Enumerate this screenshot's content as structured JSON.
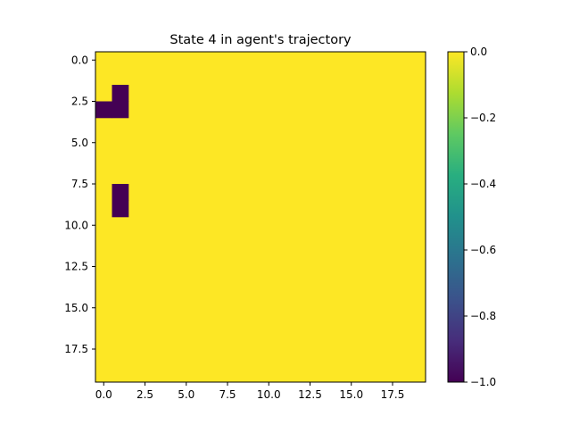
{
  "chart_data": {
    "type": "heatmap",
    "title": "State 4 in agent's trajectory",
    "xlabel": "",
    "ylabel": "",
    "grid": false,
    "shape": [
      20,
      20
    ],
    "xlim": [
      -0.5,
      19.5
    ],
    "ylim": [
      19.5,
      -0.5
    ],
    "x_ticks": [
      0,
      2.5,
      5,
      7.5,
      10,
      12.5,
      15,
      17.5
    ],
    "x_tick_labels": [
      "0.0",
      "2.5",
      "5.0",
      "7.5",
      "10.0",
      "12.5",
      "15.0",
      "17.5"
    ],
    "y_ticks": [
      0,
      2.5,
      5,
      7.5,
      10,
      12.5,
      15,
      17.5
    ],
    "y_tick_labels": [
      "0.0",
      "2.5",
      "5.0",
      "7.5",
      "10.0",
      "12.5",
      "15.0",
      "17.5"
    ],
    "default_value": 0,
    "cells": [
      {
        "row": 2,
        "col": 1,
        "value": -1
      },
      {
        "row": 3,
        "col": 0,
        "value": -1
      },
      {
        "row": 3,
        "col": 1,
        "value": -1
      },
      {
        "row": 8,
        "col": 1,
        "value": -1
      },
      {
        "row": 9,
        "col": 1,
        "value": -1
      }
    ],
    "colorbar": {
      "colormap": "viridis",
      "range": [
        -1.0,
        0.0
      ],
      "ticks": [
        0.0,
        -0.2,
        -0.4,
        -0.6,
        -0.8,
        -1.0
      ],
      "tick_labels": [
        "0.0",
        "−0.2",
        "−0.4",
        "−0.6",
        "−0.8",
        "−1.0"
      ]
    },
    "colors": {
      "min": "#440154",
      "max": "#fde725"
    }
  }
}
